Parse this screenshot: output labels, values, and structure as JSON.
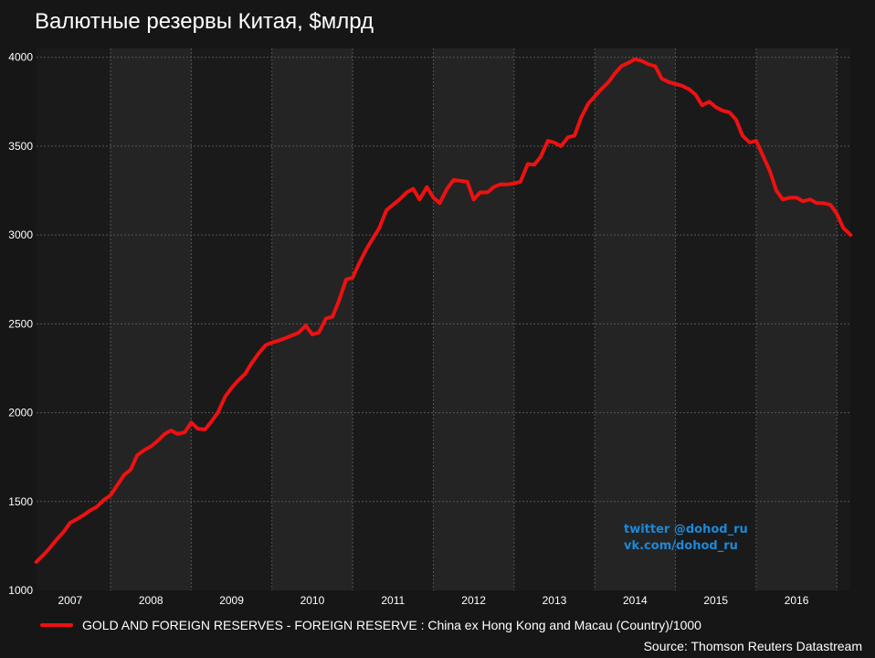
{
  "chart_data": {
    "type": "line",
    "title": "Валютные резервы Китая, $млрд",
    "xlabel": "",
    "ylabel": "",
    "x_range": [
      2006.583,
      2016.667
    ],
    "ylim": [
      1000,
      4050
    ],
    "y_ticks": [
      1000,
      1500,
      2000,
      2500,
      3000,
      3500,
      4000
    ],
    "year_labels": [
      "2007",
      "2008",
      "2009",
      "2010",
      "2011",
      "2012",
      "2013",
      "2014",
      "2015",
      "2016"
    ],
    "grid": true,
    "legend_position": "bottom-left",
    "series": [
      {
        "name": "GOLD AND FOREIGN RESERVES - FOREIGN RESERVE : China ex Hong Kong and Macau (Country)/1000",
        "color": "#ee1111",
        "x": [
          2006.58,
          2006.67,
          2006.75,
          2006.83,
          2006.92,
          2007.0,
          2007.08,
          2007.17,
          2007.25,
          2007.33,
          2007.42,
          2007.5,
          2007.58,
          2007.67,
          2007.75,
          2007.83,
          2007.92,
          2008.0,
          2008.08,
          2008.17,
          2008.25,
          2008.33,
          2008.42,
          2008.5,
          2008.58,
          2008.67,
          2008.75,
          2008.83,
          2008.92,
          2009.0,
          2009.08,
          2009.17,
          2009.25,
          2009.33,
          2009.42,
          2009.5,
          2009.58,
          2009.67,
          2009.75,
          2009.83,
          2009.92,
          2010.0,
          2010.08,
          2010.17,
          2010.25,
          2010.33,
          2010.42,
          2010.5,
          2010.58,
          2010.67,
          2010.75,
          2010.83,
          2010.92,
          2011.0,
          2011.08,
          2011.17,
          2011.25,
          2011.33,
          2011.42,
          2011.5,
          2011.58,
          2011.67,
          2011.75,
          2011.83,
          2011.92,
          2012.0,
          2012.08,
          2012.17,
          2012.25,
          2012.33,
          2012.42,
          2012.5,
          2012.58,
          2012.67,
          2012.75,
          2012.83,
          2012.92,
          2013.0,
          2013.08,
          2013.17,
          2013.25,
          2013.33,
          2013.42,
          2013.5,
          2013.58,
          2013.67,
          2013.75,
          2013.83,
          2013.92,
          2014.0,
          2014.08,
          2014.17,
          2014.25,
          2014.33,
          2014.42,
          2014.5,
          2014.58,
          2014.67,
          2014.75,
          2014.83,
          2014.92,
          2015.0,
          2015.08,
          2015.17,
          2015.25,
          2015.33,
          2015.42,
          2015.5,
          2015.58,
          2015.67,
          2015.75,
          2015.83,
          2015.92,
          2016.0,
          2016.08,
          2016.17,
          2016.25,
          2016.33,
          2016.42,
          2016.5,
          2016.58,
          2016.67
        ],
        "y": [
          1160,
          1200,
          1240,
          1285,
          1330,
          1380,
          1400,
          1425,
          1450,
          1470,
          1510,
          1535,
          1590,
          1650,
          1680,
          1760,
          1790,
          1810,
          1840,
          1880,
          1900,
          1880,
          1890,
          1945,
          1910,
          1905,
          1950,
          2000,
          2090,
          2140,
          2180,
          2220,
          2280,
          2330,
          2380,
          2395,
          2405,
          2420,
          2435,
          2450,
          2490,
          2440,
          2450,
          2530,
          2540,
          2630,
          2750,
          2760,
          2840,
          2920,
          2980,
          3040,
          3140,
          3170,
          3200,
          3240,
          3260,
          3200,
          3270,
          3210,
          3180,
          3260,
          3310,
          3305,
          3300,
          3200,
          3240,
          3240,
          3270,
          3285,
          3285,
          3290,
          3300,
          3400,
          3395,
          3440,
          3530,
          3520,
          3500,
          3550,
          3560,
          3660,
          3740,
          3780,
          3820,
          3860,
          3910,
          3950,
          3970,
          3990,
          3980,
          3960,
          3950,
          3880,
          3860,
          3850,
          3840,
          3820,
          3790,
          3730,
          3750,
          3720,
          3700,
          3690,
          3650,
          3560,
          3520,
          3530,
          3450,
          3360,
          3250,
          3200,
          3210,
          3210,
          3190,
          3200,
          3180,
          3180,
          3170,
          3120,
          3040,
          3000
        ]
      }
    ],
    "bands": [
      {
        "start": 2006.583,
        "end": 2007.5,
        "shade": "dark"
      },
      {
        "start": 2007.5,
        "end": 2008.5,
        "shade": "light"
      },
      {
        "start": 2008.5,
        "end": 2009.5,
        "shade": "dark"
      },
      {
        "start": 2009.5,
        "end": 2010.5,
        "shade": "light"
      },
      {
        "start": 2010.5,
        "end": 2011.5,
        "shade": "dark"
      },
      {
        "start": 2011.5,
        "end": 2012.5,
        "shade": "light"
      },
      {
        "start": 2012.5,
        "end": 2013.5,
        "shade": "dark"
      },
      {
        "start": 2013.5,
        "end": 2014.5,
        "shade": "light"
      },
      {
        "start": 2014.5,
        "end": 2015.5,
        "shade": "dark"
      },
      {
        "start": 2015.5,
        "end": 2016.5,
        "shade": "light"
      },
      {
        "start": 2016.5,
        "end": 2016.667,
        "shade": "dark"
      }
    ],
    "colors": {
      "background": "#161616",
      "band_light": "#242424",
      "band_dark": "#1a1a1a",
      "grid": "#555555"
    }
  },
  "watermark": {
    "line1": "twitter @dohod_ru",
    "line2": "vk.com/dohod_ru",
    "color": "#1e88d8"
  },
  "source": "Source: Thomson Reuters Datastream"
}
